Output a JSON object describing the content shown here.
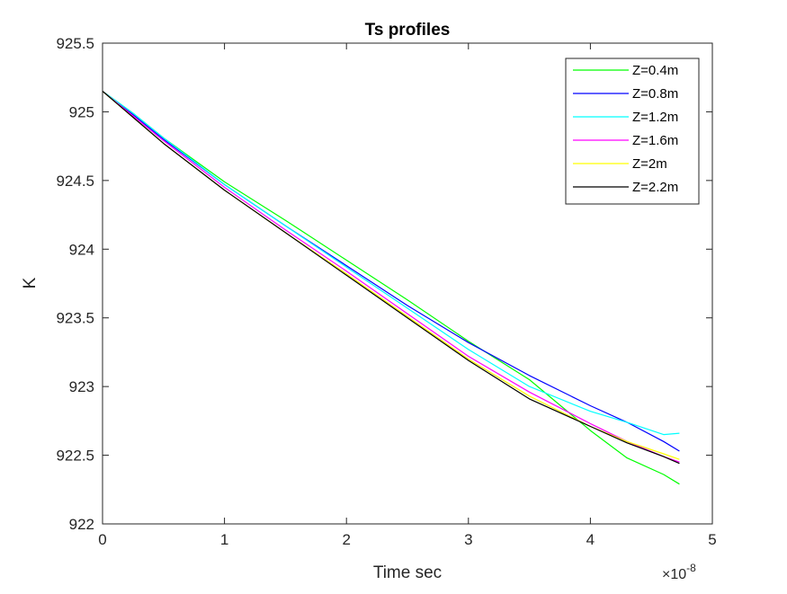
{
  "chart_data": {
    "type": "line",
    "title": "Ts profiles",
    "xlabel": "Time sec",
    "ylabel": "K",
    "x_exponent_label": "×10",
    "x_exponent_power": "-8",
    "x_scale": 1e-08,
    "xlim": [
      0,
      5e-08
    ],
    "ylim": [
      922,
      925.5
    ],
    "x_ticks": [
      0,
      1e-08,
      2e-08,
      3e-08,
      4e-08,
      5e-08
    ],
    "x_tick_labels": [
      "0",
      "1",
      "2",
      "3",
      "4",
      "5"
    ],
    "y_ticks": [
      922,
      922.5,
      923,
      923.5,
      924,
      924.5,
      925,
      925.5
    ],
    "y_tick_labels": [
      "922",
      "922.5",
      "923",
      "923.5",
      "924",
      "924.5",
      "925",
      "925.5"
    ],
    "grid": false,
    "legend_position": "top-right",
    "x": [
      0,
      2.5e-09,
      5e-09,
      1e-08,
      1.5e-08,
      2e-08,
      2.5e-08,
      3e-08,
      3.5e-08,
      4e-08,
      4.3e-08,
      4.6e-08,
      4.73e-08
    ],
    "series": [
      {
        "name": "Z=0.4m",
        "color": "#00ff00",
        "values": [
          925.15,
          924.99,
          924.81,
          924.49,
          924.21,
          923.92,
          923.63,
          923.33,
          923.05,
          922.68,
          922.48,
          922.36,
          922.29
        ]
      },
      {
        "name": "Z=0.8m",
        "color": "#0000ff",
        "values": [
          925.15,
          924.98,
          924.8,
          924.47,
          924.17,
          923.88,
          923.59,
          923.32,
          923.08,
          922.86,
          922.74,
          922.6,
          922.53
        ]
      },
      {
        "name": "Z=1.2m",
        "color": "#00ffff",
        "values": [
          925.15,
          924.99,
          924.81,
          924.47,
          924.17,
          923.87,
          923.57,
          923.27,
          923.0,
          922.82,
          922.74,
          922.65,
          922.66
        ]
      },
      {
        "name": "Z=1.6m",
        "color": "#ff00ff",
        "values": [
          925.15,
          924.97,
          924.79,
          924.45,
          924.14,
          923.84,
          923.53,
          923.22,
          922.96,
          922.73,
          922.6,
          922.49,
          922.45
        ]
      },
      {
        "name": "Z=2m",
        "color": "#ffff00",
        "values": [
          925.15,
          924.96,
          924.77,
          924.43,
          924.12,
          923.82,
          923.51,
          923.2,
          922.93,
          922.71,
          922.6,
          922.51,
          922.47
        ]
      },
      {
        "name": "Z=2.2m",
        "color": "#000000",
        "values": [
          925.15,
          924.96,
          924.77,
          924.43,
          924.12,
          923.81,
          923.5,
          923.19,
          922.91,
          922.71,
          922.59,
          922.49,
          922.44
        ]
      }
    ]
  }
}
